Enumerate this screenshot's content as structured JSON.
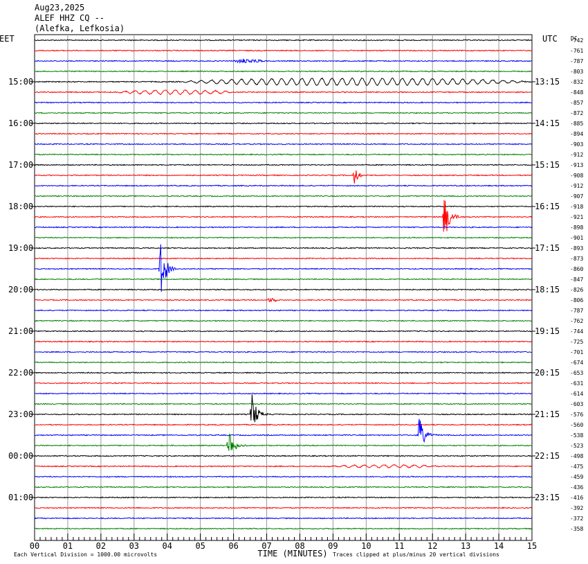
{
  "header": {
    "date": "Aug23,2025",
    "station": "ALEF HHZ CQ --",
    "location": "(Alefka, Lefkosia)"
  },
  "chart_data": {
    "type": "line",
    "title": "",
    "left_timezone": "EET",
    "right_timezone": "UTC",
    "dc_label": "DC",
    "xlabel": "TIME (MINUTES)",
    "xlim": [
      0,
      15
    ],
    "x_ticks": [
      "00",
      "01",
      "02",
      "03",
      "04",
      "05",
      "06",
      "07",
      "08",
      "09",
      "10",
      "11",
      "12",
      "13",
      "14",
      "15"
    ],
    "scale_note": "Each Vertical Division = 1000.00 microvolts",
    "clip_note": "Traces clipped at plus/minus 20 vertical divisions",
    "trace_colors": [
      "#000000",
      "#ff0000",
      "#0000ff",
      "#008000"
    ],
    "left_time_labels": [
      {
        "trace": 4,
        "text": "15:00"
      },
      {
        "trace": 8,
        "text": "16:00"
      },
      {
        "trace": 12,
        "text": "17:00"
      },
      {
        "trace": 16,
        "text": "18:00"
      },
      {
        "trace": 20,
        "text": "19:00"
      },
      {
        "trace": 24,
        "text": "20:00"
      },
      {
        "trace": 28,
        "text": "21:00"
      },
      {
        "trace": 32,
        "text": "22:00"
      },
      {
        "trace": 36,
        "text": "23:00"
      },
      {
        "trace": 40,
        "text": "00:00"
      },
      {
        "trace": 44,
        "text": "01:00"
      }
    ],
    "right_time_labels": [
      {
        "trace": 4,
        "text": "13:15"
      },
      {
        "trace": 8,
        "text": "14:15"
      },
      {
        "trace": 12,
        "text": "15:15"
      },
      {
        "trace": 16,
        "text": "16:15"
      },
      {
        "trace": 20,
        "text": "17:15"
      },
      {
        "trace": 24,
        "text": "18:15"
      },
      {
        "trace": 28,
        "text": "19:15"
      },
      {
        "trace": 32,
        "text": "20:15"
      },
      {
        "trace": 36,
        "text": "21:15"
      },
      {
        "trace": 40,
        "text": "22:15"
      },
      {
        "trace": 44,
        "text": "23:15"
      }
    ],
    "dc_offsets": [
      "-742",
      "-761",
      "-787",
      "-803",
      "-832",
      "-848",
      "-857",
      "-872",
      "-885",
      "-894",
      "-903",
      "-912",
      "-913",
      "-908",
      "-912",
      "-907",
      "-918",
      "-921",
      "-898",
      "-901",
      "-893",
      "-873",
      "-860",
      "-847",
      "-826",
      "-806",
      "-787",
      "-762",
      "-744",
      "-725",
      "-701",
      "-674",
      "-653",
      "-631",
      "-614",
      "-603",
      "-576",
      "-560",
      "-538",
      "-523",
      "-498",
      "-475",
      "-459",
      "-436",
      "-416",
      "-392",
      "-372",
      "-358"
    ],
    "noise_level": 0.7,
    "events": [
      {
        "trace": 2,
        "minute": 5.85,
        "duration": 1.2,
        "amplitude": 3,
        "kind": "burst"
      },
      {
        "trace": 4,
        "minute": 4.5,
        "duration": 10.3,
        "amplitude": 5,
        "kind": "wave"
      },
      {
        "trace": 5,
        "minute": 2.5,
        "duration": 3.5,
        "amplitude": 3,
        "kind": "wave"
      },
      {
        "trace": 13,
        "minute": 9.6,
        "duration": 0.9,
        "amplitude": 13,
        "kind": "quake"
      },
      {
        "trace": 17,
        "minute": 12.3,
        "duration": 1.1,
        "amplitude": 38,
        "kind": "quake"
      },
      {
        "trace": 22,
        "minute": 3.75,
        "duration": 1.0,
        "amplitude": 46,
        "kind": "quake"
      },
      {
        "trace": 25,
        "minute": 6.95,
        "duration": 0.4,
        "amplitude": 3,
        "kind": "burst"
      },
      {
        "trace": 36,
        "minute": 6.5,
        "duration": 0.9,
        "amplitude": 36,
        "kind": "quake"
      },
      {
        "trace": 38,
        "minute": 11.55,
        "duration": 1.0,
        "amplitude": 30,
        "kind": "quake"
      },
      {
        "trace": 39,
        "minute": 5.8,
        "duration": 1.0,
        "amplitude": 30,
        "kind": "quake"
      },
      {
        "trace": 41,
        "minute": 8.8,
        "duration": 3.4,
        "amplitude": 2,
        "kind": "wave"
      }
    ]
  }
}
